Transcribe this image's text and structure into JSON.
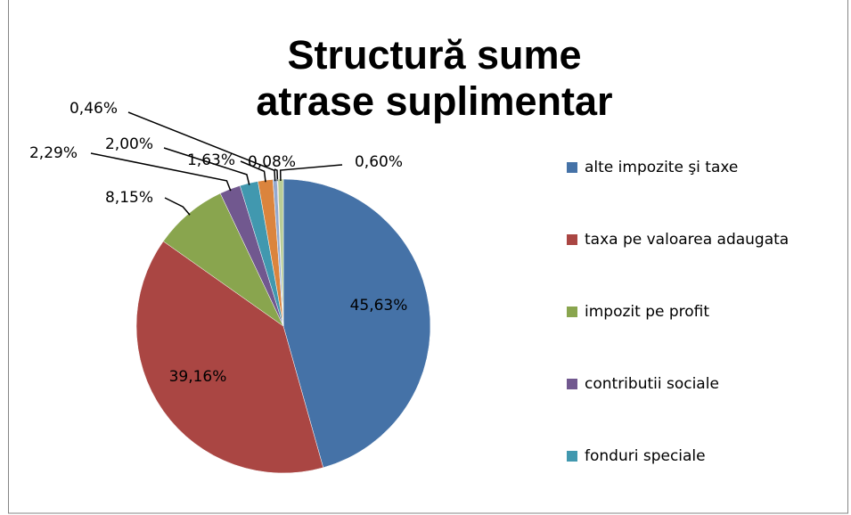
{
  "chart_data": {
    "type": "pie",
    "title": "Structură sume atrase suplimentar",
    "categories": [
      "alte impozite şi taxe",
      "taxa pe valoarea adaugata",
      "impozit pe profit",
      "contributii sociale",
      "fonduri speciale",
      null,
      null,
      null,
      null
    ],
    "values": [
      45.63,
      39.16,
      8.15,
      2.29,
      2.0,
      1.63,
      0.46,
      0.08,
      0.6
    ],
    "value_labels": [
      "45,63%",
      "39,16%",
      "8,15%",
      "2,29%",
      "2,00%",
      "1,63%",
      "0,46%",
      "0,08%",
      "0,60%"
    ],
    "colors": [
      "#4572a7",
      "#aa4643",
      "#89a54e",
      "#71588f",
      "#4198af",
      "#db843d",
      "#93a9cf",
      "#d19392",
      "#b9cd96"
    ],
    "legend": "right"
  }
}
